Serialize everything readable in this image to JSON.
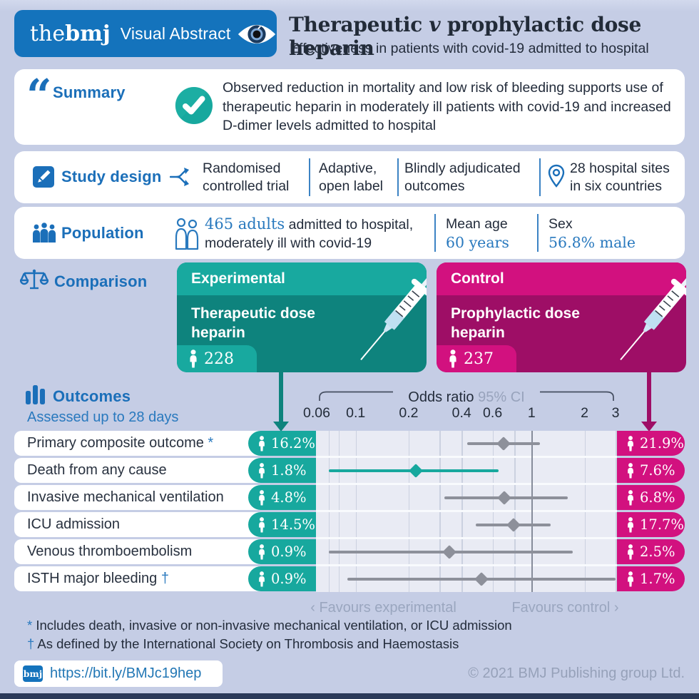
{
  "colors": {
    "background": "#C5CDE5",
    "bmj_blue": "#1473BC",
    "section_blue": "#1B6FB9",
    "accent_blue_text": "#2979BE",
    "dark_text": "#232C3B",
    "teal": "#17A89E",
    "teal_dark": "#0E837D",
    "magenta": "#D2117F",
    "magenta_dark": "#9E0E66",
    "ci_gray": "#8D909A",
    "muted_gray": "#9AA6BF"
  },
  "header": {
    "logo_the": "the",
    "logo_bmj": "bmj",
    "badge_label": "Visual Abstract",
    "title_1": "Therapeutic ",
    "title_v": "v",
    "title_2": " prophylactic dose heparin",
    "subtitle": "Effectiveness in patients with covid-19 admitted to hospital"
  },
  "summary": {
    "heading": "Summary",
    "text": "Observed reduction in mortality and low risk of bleeding supports use of therapeutic heparin in moderately ill patients with covid-19 and increased D-dimer levels admitted to hospital"
  },
  "study_design": {
    "heading": "Study design",
    "items": [
      {
        "icon": "branch-icon",
        "line1": "Randomised",
        "line2": "controlled trial"
      },
      {
        "icon": "",
        "line1": "Adaptive,",
        "line2": "open label"
      },
      {
        "icon": "",
        "line1": "Blindly adjudicated",
        "line2": "outcomes"
      },
      {
        "icon": "location-pin-icon",
        "line1": "28 hospital sites",
        "line2": "in six countries"
      }
    ]
  },
  "population": {
    "heading": "Population",
    "highlight": "465 adults",
    "line1_rest": " admitted to hospital,",
    "line2": "moderately ill with covid-19",
    "stats": [
      {
        "label": "Mean age",
        "value": "60 years"
      },
      {
        "label": "Sex",
        "value": "56.8% male"
      }
    ]
  },
  "comparison": {
    "heading": "Comparison",
    "experimental": {
      "tag": "Experimental",
      "name_line1": "Therapeutic dose",
      "name_line2": "heparin",
      "n": "228"
    },
    "control": {
      "tag": "Control",
      "name_line1": "Prophylactic dose",
      "name_line2": "heparin",
      "n": "237"
    }
  },
  "outcomes": {
    "heading": "Outcomes",
    "subheading": "Assessed up to 28 days",
    "axis_label": "Odds ratio",
    "axis_ci_label": "95% CI",
    "favours_left": "‹ Favours experimental",
    "favours_right": "Favours control ›"
  },
  "chart_data": {
    "type": "scatter",
    "subtype": "forest-plot",
    "title": "Odds ratio 95% CI",
    "axis": {
      "scale": "log",
      "min": 0.06,
      "max": 3,
      "ticks": [
        0.06,
        0.1,
        0.2,
        0.4,
        0.6,
        1,
        2,
        3
      ],
      "tick_labels": [
        "0.06",
        "0.1",
        "0.2",
        "0.4",
        "0.6",
        "1",
        "2",
        "3"
      ],
      "gridlines": [
        0.07,
        0.08,
        0.1,
        0.2,
        0.3,
        0.4,
        0.6,
        0.8,
        2,
        3
      ],
      "reference_line": 1
    },
    "rows": [
      {
        "label": "Primary composite outcome",
        "mark": "*",
        "experimental_pct": "16.2%",
        "control_pct": "21.9%",
        "odds_ratio": 0.69,
        "ci_low": 0.43,
        "ci_high": 1.12,
        "significant": false
      },
      {
        "label": "Death from any cause",
        "mark": "",
        "experimental_pct": "1.8%",
        "control_pct": "7.6%",
        "odds_ratio": 0.22,
        "ci_low": 0.07,
        "ci_high": 0.65,
        "significant": true
      },
      {
        "label": "Invasive mechanical ventilation",
        "mark": "",
        "experimental_pct": "4.8%",
        "control_pct": "6.8%",
        "odds_ratio": 0.7,
        "ci_low": 0.32,
        "ci_high": 1.6,
        "significant": false
      },
      {
        "label": "ICU admission",
        "mark": "",
        "experimental_pct": "14.5%",
        "control_pct": "17.7%",
        "odds_ratio": 0.79,
        "ci_low": 0.48,
        "ci_high": 1.28,
        "significant": false
      },
      {
        "label": "Venous thromboembolism",
        "mark": "",
        "experimental_pct": "0.9%",
        "control_pct": "2.5%",
        "odds_ratio": 0.34,
        "ci_low": 0.07,
        "ci_high": 1.72,
        "significant": false
      },
      {
        "label": "ISTH major bleeding",
        "mark": "†",
        "experimental_pct": "0.9%",
        "control_pct": "1.7%",
        "odds_ratio": 0.52,
        "ci_low": 0.09,
        "ci_high": 3.0,
        "significant": false
      }
    ]
  },
  "footnotes": [
    {
      "mark": "*",
      "text": " Includes death, invasive or non-invasive mechanical ventilation, or ICU admission"
    },
    {
      "mark": "†",
      "text": " As defined by the International Society on Thrombosis and Haemostasis"
    }
  ],
  "footer": {
    "badge": "bmj",
    "link": "https://bit.ly/BMJc19hep",
    "copyright": "© 2021 BMJ Publishing group Ltd."
  }
}
